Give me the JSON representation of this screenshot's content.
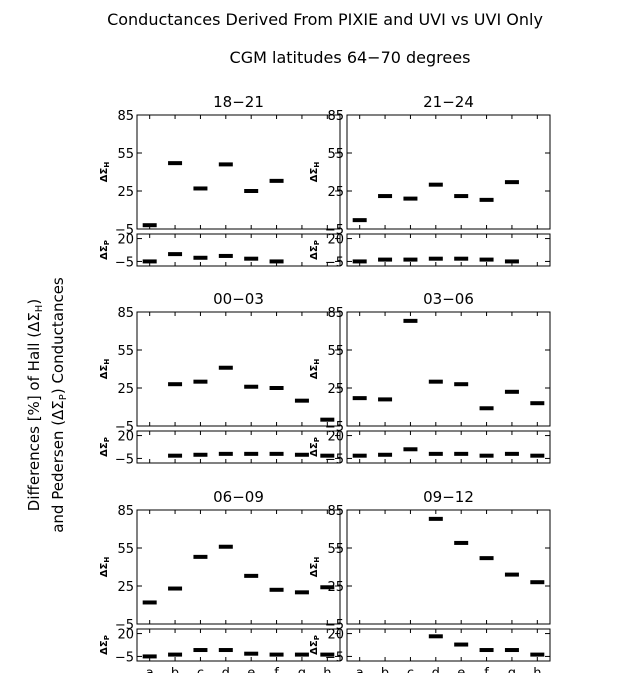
{
  "title": "Conductances Derived From PIXIE and UVI vs UVI Only",
  "subtitle": "CGM latitudes 64−70 degrees",
  "ylabel_line1": "Differences [%] of Hall (ΔΣ",
  "ylabel_line1_sub": "H",
  "ylabel_line1_end": ")",
  "ylabel_line2": "and Pedersen (ΔΣ",
  "ylabel_line2_sub": "P",
  "ylabel_line2_end": ") Conductances",
  "hall_axis_label": "ΔΣ",
  "hall_axis_sub": "H",
  "ped_axis_label": "ΔΣ",
  "ped_axis_sub": "P",
  "colors": {
    "axes": "#000000",
    "marks": "#000000",
    "background": "#ffffff"
  },
  "chart_data": [
    {
      "type": "scatter",
      "title": "18−21",
      "categories": [
        "a",
        "b",
        "c",
        "d",
        "e",
        "f",
        "g",
        "h"
      ],
      "hall": {
        "ylim": [
          -5,
          85
        ],
        "yticks": [
          85,
          55,
          25,
          -5
        ],
        "values": [
          -2,
          47,
          27,
          46,
          25,
          33,
          null,
          null
        ]
      },
      "pedersen": {
        "ylim": [
          -10,
          25
        ],
        "yticks": [
          20,
          -5
        ],
        "values": [
          -5,
          3,
          -1,
          1,
          -2,
          -5,
          null,
          null
        ]
      }
    },
    {
      "type": "scatter",
      "title": "21−24",
      "categories": [
        "a",
        "b",
        "c",
        "d",
        "e",
        "f",
        "g",
        "h"
      ],
      "hall": {
        "ylim": [
          -5,
          85
        ],
        "yticks": [
          85,
          55,
          25,
          -5
        ],
        "values": [
          2,
          21,
          19,
          30,
          21,
          18,
          32,
          null
        ]
      },
      "pedersen": {
        "ylim": [
          -10,
          25
        ],
        "yticks": [
          20,
          -5
        ],
        "values": [
          -5,
          -3,
          -3,
          -2,
          -2,
          -3,
          -5,
          null
        ]
      }
    },
    {
      "type": "scatter",
      "title": "00−03",
      "categories": [
        "a",
        "b",
        "c",
        "d",
        "e",
        "f",
        "g",
        "h"
      ],
      "hall": {
        "ylim": [
          -5,
          85
        ],
        "yticks": [
          85,
          55,
          25,
          -5
        ],
        "values": [
          null,
          28,
          30,
          41,
          26,
          25,
          15,
          0
        ]
      },
      "pedersen": {
        "ylim": [
          -10,
          25
        ],
        "yticks": [
          20,
          -5
        ],
        "values": [
          null,
          -2,
          -1,
          0,
          0,
          0,
          -1,
          -2
        ]
      }
    },
    {
      "type": "scatter",
      "title": "03−06",
      "categories": [
        "a",
        "b",
        "c",
        "d",
        "e",
        "f",
        "g",
        "h"
      ],
      "hall": {
        "ylim": [
          -5,
          85
        ],
        "yticks": [
          85,
          55,
          25,
          -5
        ],
        "values": [
          17,
          16,
          78,
          30,
          28,
          9,
          22,
          13
        ]
      },
      "pedersen": {
        "ylim": [
          -10,
          25
        ],
        "yticks": [
          20,
          -5
        ],
        "values": [
          -2,
          -1,
          5,
          0,
          0,
          -2,
          0,
          -2
        ]
      }
    },
    {
      "type": "scatter",
      "title": "06−09",
      "categories": [
        "a",
        "b",
        "c",
        "d",
        "e",
        "f",
        "g",
        "h"
      ],
      "hall": {
        "ylim": [
          -5,
          85
        ],
        "yticks": [
          85,
          55,
          25,
          -5
        ],
        "values": [
          12,
          23,
          48,
          56,
          33,
          22,
          20,
          24
        ]
      },
      "pedersen": {
        "ylim": [
          -10,
          25
        ],
        "yticks": [
          20,
          -5
        ],
        "values": [
          -5,
          -3,
          2,
          2,
          -2,
          -3,
          -3,
          -3
        ]
      }
    },
    {
      "type": "scatter",
      "title": "09−12",
      "categories": [
        "a",
        "b",
        "c",
        "d",
        "e",
        "f",
        "g",
        "h"
      ],
      "hall": {
        "ylim": [
          -5,
          85
        ],
        "yticks": [
          85,
          55,
          25,
          -5
        ],
        "values": [
          null,
          null,
          null,
          78,
          59,
          47,
          34,
          28
        ]
      },
      "pedersen": {
        "ylim": [
          -10,
          25
        ],
        "yticks": [
          20,
          -5
        ],
        "values": [
          null,
          null,
          null,
          17,
          8,
          2,
          2,
          -3
        ]
      }
    }
  ]
}
